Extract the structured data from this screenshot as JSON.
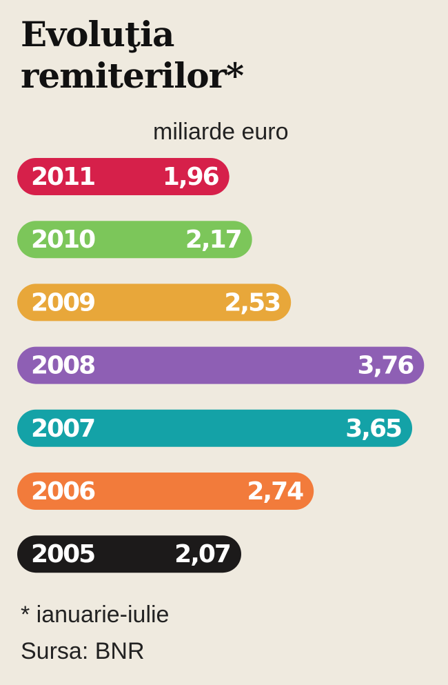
{
  "chart_data": {
    "type": "bar",
    "title": "Evoluţia remiterilor*",
    "subtitle": "miliarde euro",
    "categories": [
      "2011",
      "2010",
      "2009",
      "2008",
      "2007",
      "2006",
      "2005"
    ],
    "values": [
      1.96,
      2.17,
      2.53,
      3.76,
      3.65,
      2.74,
      2.07
    ],
    "value_labels": [
      "1,96",
      "2,17",
      "2,53",
      "3,76",
      "3,65",
      "2,74",
      "2,07"
    ],
    "colors": [
      "#d6204a",
      "#7cc65a",
      "#e8a73a",
      "#8e5fb4",
      "#14a2a7",
      "#f27b3b",
      "#1c1a1a"
    ],
    "footnote": "* ianuarie-iulie",
    "source": "Sursa: BNR"
  }
}
